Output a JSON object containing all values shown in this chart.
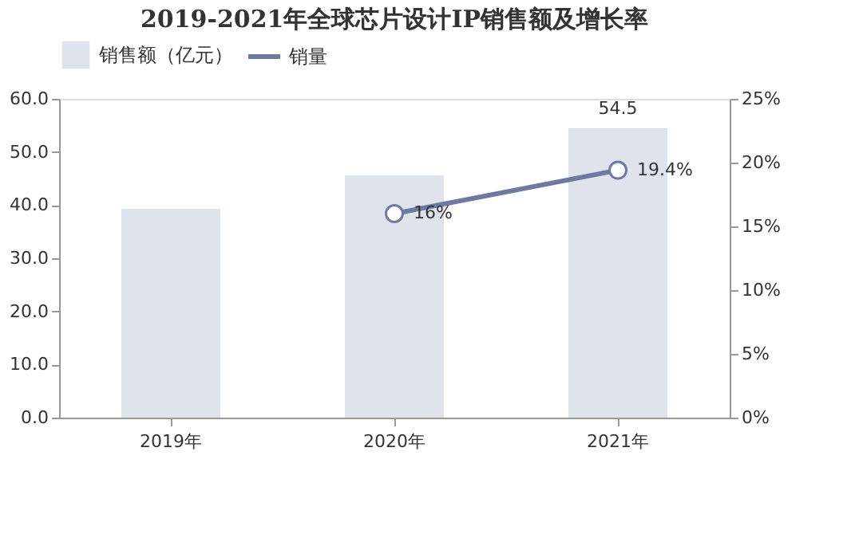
{
  "chart_data": {
    "type": "bar",
    "title": "2019-2021年全球芯片设计IP销售额及增长率",
    "categories": [
      "2019年",
      "2020年",
      "2021年"
    ],
    "series": [
      {
        "name": "销售额（亿元）",
        "color": "#dfe3ec",
        "values": [
          39.3,
          45.6,
          54.5
        ],
        "value_labels": [
          null,
          null,
          "54.5"
        ]
      },
      {
        "name": "销量",
        "type": "line",
        "axis": "y2",
        "color": "#6e7aa0",
        "values": [
          null,
          16,
          19.4
        ],
        "value_labels": [
          null,
          "16%",
          "19.4%"
        ]
      }
    ],
    "ylim": [
      0,
      60
    ],
    "yticks": [
      {
        "value": 0,
        "label": "0.0"
      },
      {
        "value": 10,
        "label": "10.0"
      },
      {
        "value": 20,
        "label": "20.0"
      },
      {
        "value": 30,
        "label": "30.0"
      },
      {
        "value": 40,
        "label": "40.0"
      },
      {
        "value": 50,
        "label": "50.0"
      },
      {
        "value": 60,
        "label": "60.0"
      }
    ],
    "y2lim": [
      0,
      25
    ],
    "y2ticks": [
      {
        "value": 0,
        "label": "0%"
      },
      {
        "value": 5,
        "label": "5%"
      },
      {
        "value": 10,
        "label": "10%"
      },
      {
        "value": 15,
        "label": "15%"
      },
      {
        "value": 20,
        "label": "20%"
      },
      {
        "value": 25,
        "label": "25%"
      }
    ],
    "legend": "top",
    "grid": false,
    "marker": "circle",
    "line_style": "solid"
  }
}
